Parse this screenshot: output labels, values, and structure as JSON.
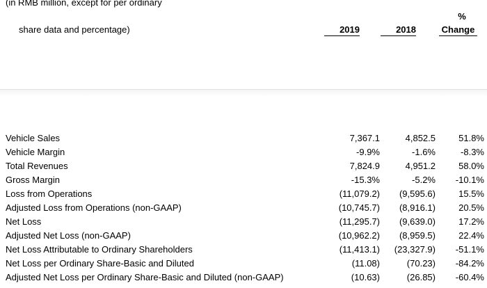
{
  "header": {
    "line1": "(in RMB million, except for per ordinary",
    "line2": "share data and percentage)",
    "col_2019": "2019",
    "col_2018": "2018",
    "col_pct_symbol": "%",
    "col_change": "Change"
  },
  "rows": [
    {
      "label": "Vehicle Sales",
      "v2019": "7,367.1",
      "v2018": "4,852.5",
      "change": "51.8%"
    },
    {
      "label": "Vehicle Margin",
      "v2019": "-9.9%",
      "v2018": "-1.6%",
      "change": "-8.3%"
    },
    {
      "label": "Total Revenues",
      "v2019": "7,824.9",
      "v2018": "4,951.2",
      "change": "58.0%"
    },
    {
      "label": "Gross Margin",
      "v2019": "-15.3%",
      "v2018": "-5.2%",
      "change": "-10.1%"
    },
    {
      "label": "Loss from Operations",
      "v2019": "(11,079.2)",
      "v2018": "(9,595.6)",
      "change": "15.5%"
    },
    {
      "label": "Adjusted Loss from Operations (non-GAAP)",
      "v2019": "(10,745.7)",
      "v2018": "(8,916.1)",
      "change": "20.5%"
    },
    {
      "label": "Net Loss",
      "v2019": "(11,295.7)",
      "v2018": "(9,639.0)",
      "change": "17.2%"
    },
    {
      "label": "Adjusted Net Loss (non-GAAP)",
      "v2019": "(10,962.2)",
      "v2018": "(8,959.5)",
      "change": "22.4%"
    },
    {
      "label": "Net Loss Attributable to Ordinary Shareholders",
      "v2019": "(11,413.1)",
      "v2018": "(23,327.9)",
      "change": "-51.1%"
    },
    {
      "label": "Net Loss per Ordinary Share-Basic and Diluted",
      "v2019": "(11.08)",
      "v2018": "(70.23)",
      "change": "-84.2%"
    },
    {
      "label": "Adjusted Net Loss per Ordinary Share-Basic and Diluted (non-GAAP)",
      "v2019": "(10.63)",
      "v2018": "(26.85)",
      "change": "-60.4%"
    }
  ]
}
